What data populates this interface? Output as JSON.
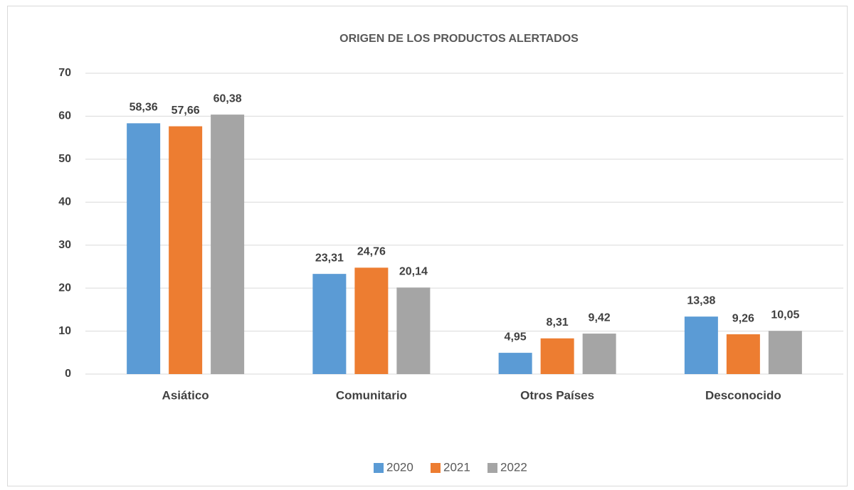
{
  "chart_data": {
    "type": "bar",
    "title": "ORIGEN DE LOS PRODUCTOS ALERTADOS",
    "categories": [
      "Asiático",
      "Comunitario",
      "Otros Países",
      "Desconocido"
    ],
    "series": [
      {
        "name": "2020",
        "color": "#5b9bd5",
        "values": [
          58.36,
          23.31,
          4.95,
          13.38
        ],
        "value_labels": [
          "58,36",
          "23,31",
          "4,95",
          "13,38"
        ]
      },
      {
        "name": "2021",
        "color": "#ed7d31",
        "values": [
          57.66,
          24.76,
          8.31,
          9.26
        ],
        "value_labels": [
          "57,66",
          "24,76",
          "8,31",
          "9,26"
        ]
      },
      {
        "name": "2022",
        "color": "#a5a5a5",
        "values": [
          60.38,
          20.14,
          9.42,
          10.05
        ],
        "value_labels": [
          "60,38",
          "20,14",
          "9,42",
          "10,05"
        ]
      }
    ],
    "ylim": [
      0,
      70
    ],
    "yticks": [
      0,
      10,
      20,
      30,
      40,
      50,
      60,
      70
    ],
    "grid": true,
    "legend": "bottom"
  }
}
